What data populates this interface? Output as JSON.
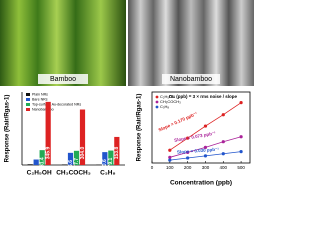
{
  "images": [
    {
      "label": "Bamboo"
    },
    {
      "label": "Nanobamboo"
    }
  ],
  "chart_data": [
    {
      "type": "bar",
      "y_label": "Response (Rair/Rgas-1)",
      "categories": [
        "C₂H₅OH",
        "CH₃COCH₃",
        "C₃H₈"
      ],
      "ylim": [
        0,
        400
      ],
      "legend": "top-left",
      "series": [
        {
          "name": "Plain NRs",
          "color": "#111111",
          "values": [
            4,
            3,
            2
          ],
          "value_labels": [
            null,
            null,
            null
          ]
        },
        {
          "name": "Bare NRs",
          "color": "#2255cc",
          "values": [
            30,
            66.6,
            70.6
          ],
          "value_labels": [
            null,
            "66.6",
            "70.6"
          ]
        },
        {
          "name": "Top-surface Au-decorated NRs",
          "color": "#22aa55",
          "values": [
            81.4,
            77.7,
            79.1
          ],
          "value_labels": [
            "81.4",
            "77.7",
            "79.1"
          ]
        },
        {
          "name": "Nanobamboo",
          "color": "#dd2222",
          "values": [
            345.9,
            304.0,
            153.8
          ],
          "value_labels": [
            "345.9",
            "304.0",
            "153.8"
          ]
        }
      ]
    },
    {
      "type": "line",
      "x_label": "Concentration (ppb)",
      "y_label": "Response (Rair/Rgas-1)",
      "x": [
        100,
        200,
        300,
        400,
        500
      ],
      "xlim": [
        0,
        550
      ],
      "xticks": [
        0,
        100,
        200,
        300,
        400,
        500
      ],
      "ylim": [
        0,
        100
      ],
      "legend": "top-left",
      "annotations": [
        "Slope = 0.170 ppb⁻¹",
        "Slope = 0.073 ppb⁻¹",
        "Slope = 0.030 ppb⁻¹",
        "DL (ppb) = 3 × rms noise / slope"
      ],
      "series": [
        {
          "name": "C₂H₅OH",
          "color": "#dd2222",
          "values": [
            18,
            35,
            52,
            68,
            85
          ]
        },
        {
          "name": "CH₃COCH₃",
          "color": "#aa2299",
          "values": [
            8,
            15,
            22,
            30,
            37
          ]
        },
        {
          "name": "C₃H₈",
          "color": "#2255cc",
          "values": [
            4,
            7,
            10,
            13,
            16
          ]
        }
      ]
    }
  ]
}
